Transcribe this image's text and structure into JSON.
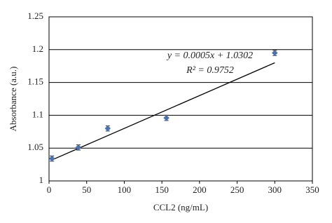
{
  "chart_data": {
    "type": "scatter",
    "x_label": "CCL2 (ng/mL)",
    "y_label": "Absorbance (a.u.)",
    "x": [
      3.9,
      39,
      78,
      156,
      300
    ],
    "series": [
      {
        "color": "#4a72b0",
        "values": [
          1.034,
          1.051,
          1.08,
          1.096,
          1.195
        ],
        "errors": [
          0.004,
          0.004,
          0.004,
          0.004,
          0.004
        ]
      }
    ],
    "trendline": {
      "x": [
        3.9,
        300
      ],
      "values": [
        1.032,
        1.18
      ],
      "color": "#000000"
    },
    "equation": "y = 0.0005x + 1.0302",
    "r_squared": "R² = 0.9752",
    "xlim": [
      0,
      350
    ],
    "xticks": [
      0,
      50,
      100,
      150,
      200,
      250,
      300,
      350
    ],
    "ylim": [
      1,
      1.25
    ],
    "yticks": [
      1,
      1.05,
      1.1,
      1.15,
      1.2,
      1.25
    ],
    "grid": true
  }
}
